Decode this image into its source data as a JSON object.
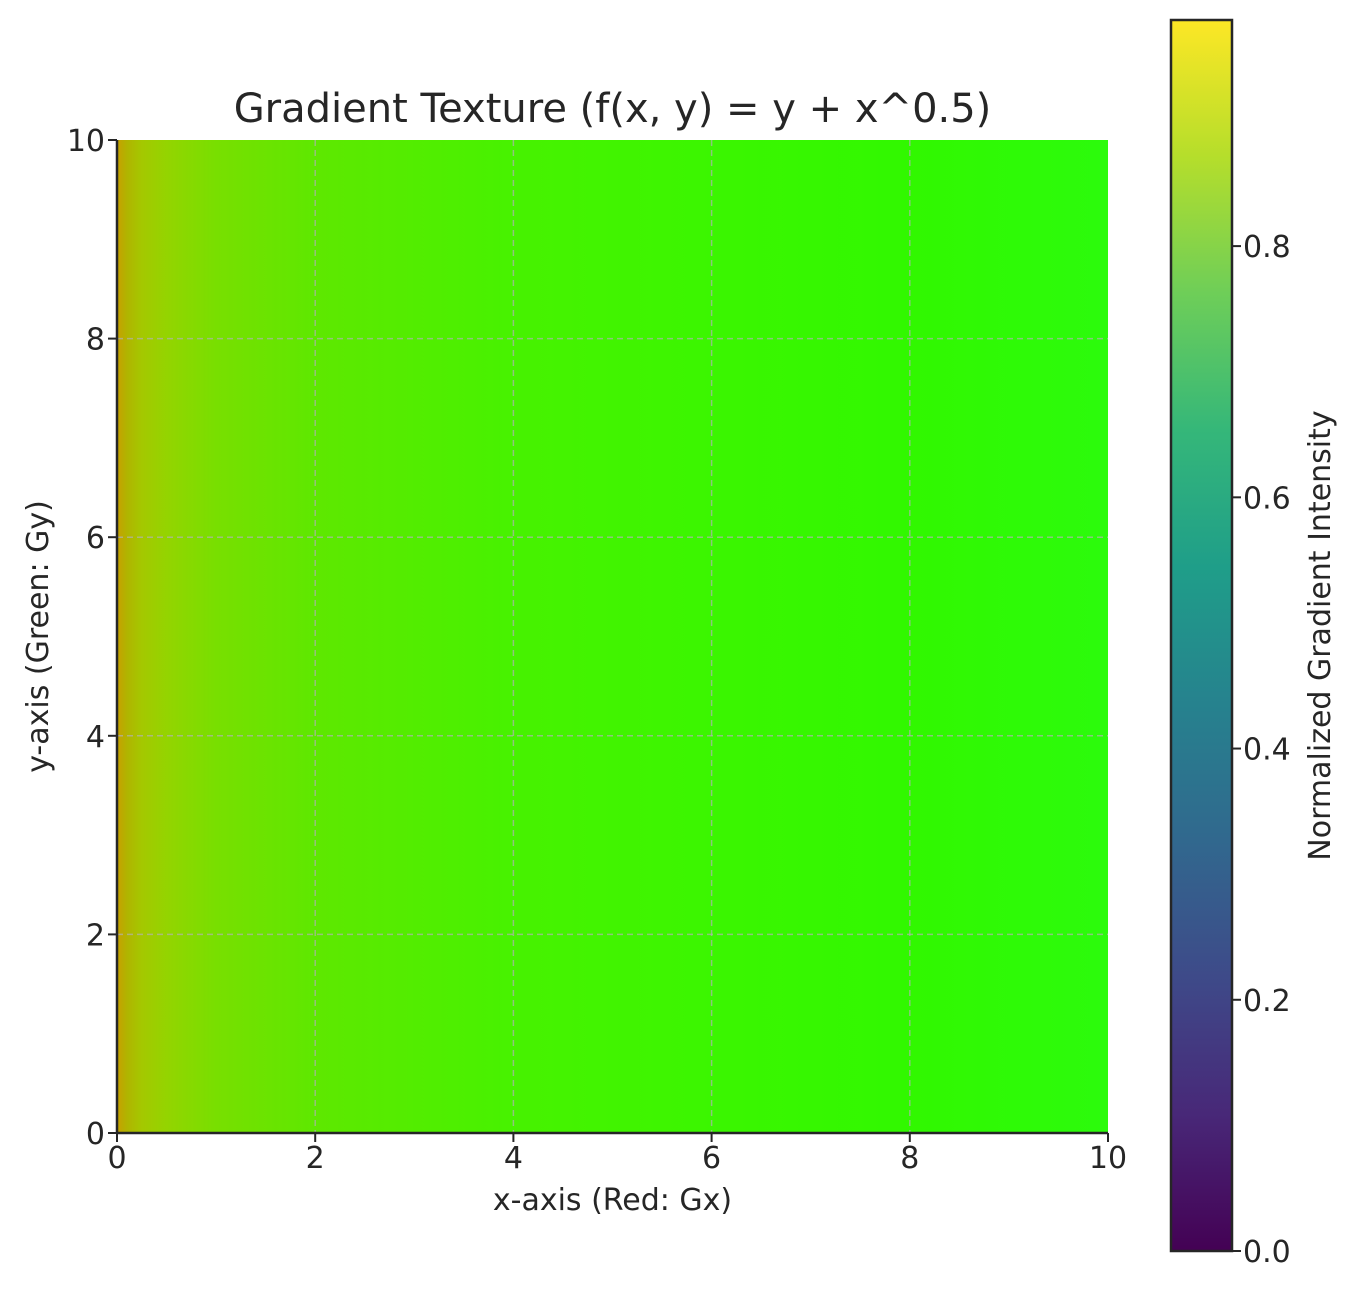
{
  "chart_data": {
    "type": "heatmap",
    "title": "Gradient Texture (f(x, y) = y + x^0.5)",
    "xlabel": "x-axis (Red: Gx)",
    "ylabel": "y-axis (Green: Gy)",
    "xlim": [
      0,
      10
    ],
    "ylim": [
      0,
      10
    ],
    "x_ticks": [
      0,
      2,
      4,
      6,
      8,
      10
    ],
    "y_ticks": [
      0,
      2,
      4,
      6,
      8,
      10
    ],
    "x_tick_labels": [
      "0",
      "2",
      "4",
      "6",
      "8",
      "10"
    ],
    "y_tick_labels": [
      "0",
      "2",
      "4",
      "6",
      "8",
      "10"
    ],
    "grid": true,
    "function": "f(x, y) = y + x^0.5",
    "texture_colors": [
      {
        "x": 0.0,
        "color": "#c8a000"
      },
      {
        "x": 0.1,
        "color": "#b0b400"
      },
      {
        "x": 0.25,
        "color": "#a4c800"
      },
      {
        "x": 0.5,
        "color": "#94d400"
      },
      {
        "x": 1.0,
        "color": "#78df00"
      },
      {
        "x": 2.0,
        "color": "#5ee800"
      },
      {
        "x": 4.0,
        "color": "#47f200"
      },
      {
        "x": 6.0,
        "color": "#3bf600"
      },
      {
        "x": 8.0,
        "color": "#31f800"
      },
      {
        "x": 10.0,
        "color": "#2cfb0c"
      }
    ],
    "colorbar": {
      "label": "Normalized Gradient Intensity",
      "range": [
        0,
        0.98
      ],
      "ticks": [
        0.0,
        0.2,
        0.4,
        0.6,
        0.8
      ],
      "tick_labels": [
        "0.0",
        "0.2",
        "0.4",
        "0.6",
        "0.8"
      ],
      "colormap": "viridis",
      "colormap_stops": [
        "#440154",
        "#482878",
        "#3e4a89",
        "#31688e",
        "#26828e",
        "#1f9e89",
        "#35b779",
        "#6ece58",
        "#b5de2b",
        "#fde725"
      ]
    }
  }
}
